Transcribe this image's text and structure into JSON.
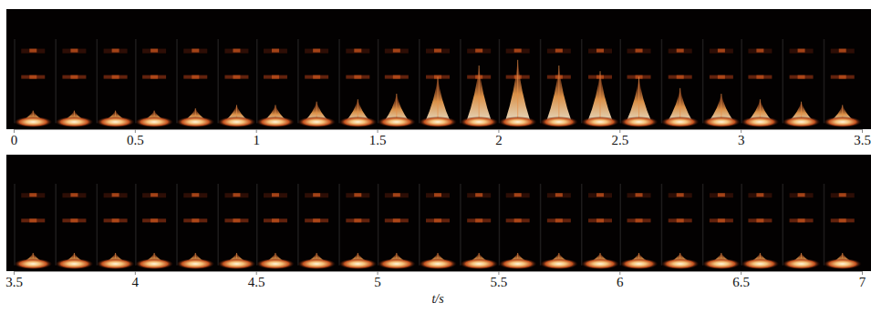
{
  "chart_data": [
    {
      "type": "image_sequence",
      "x": [
        0.08,
        0.25,
        0.42,
        0.58,
        0.75,
        0.92,
        1.08,
        1.25,
        1.42,
        1.58,
        1.75,
        1.92,
        2.08,
        2.25,
        2.42,
        2.58,
        2.75,
        2.92,
        3.08,
        3.25,
        3.42
      ],
      "values": [
        0.1,
        0.1,
        0.1,
        0.1,
        0.12,
        0.15,
        0.15,
        0.18,
        0.2,
        0.25,
        0.4,
        0.5,
        0.55,
        0.5,
        0.45,
        0.4,
        0.3,
        0.25,
        0.2,
        0.18,
        0.15
      ],
      "xlim": [
        0,
        3.5
      ],
      "xticks": [
        0,
        0.5,
        1,
        1.5,
        2,
        2.5,
        3,
        3.5
      ],
      "ylim": [
        0,
        1
      ],
      "tick_labels": "x"
    },
    {
      "type": "image_sequence",
      "x": [
        3.58,
        3.75,
        3.92,
        4.08,
        4.25,
        4.42,
        4.58,
        4.75,
        4.92,
        5.08,
        5.25,
        5.42,
        5.58,
        5.75,
        5.92,
        6.08,
        6.25,
        6.42,
        6.58,
        6.75,
        6.92
      ],
      "values": [
        0.1,
        0.1,
        0.1,
        0.1,
        0.1,
        0.1,
        0.1,
        0.1,
        0.1,
        0.1,
        0.1,
        0.1,
        0.1,
        0.1,
        0.1,
        0.1,
        0.1,
        0.1,
        0.1,
        0.1,
        0.1
      ],
      "xlim": [
        3.5,
        7
      ],
      "xticks": [
        3.5,
        4,
        4.5,
        5,
        5.5,
        6,
        6.5,
        7
      ],
      "ylim": [
        0,
        1
      ],
      "tick_labels": "x",
      "xlabel": "t/s"
    }
  ]
}
